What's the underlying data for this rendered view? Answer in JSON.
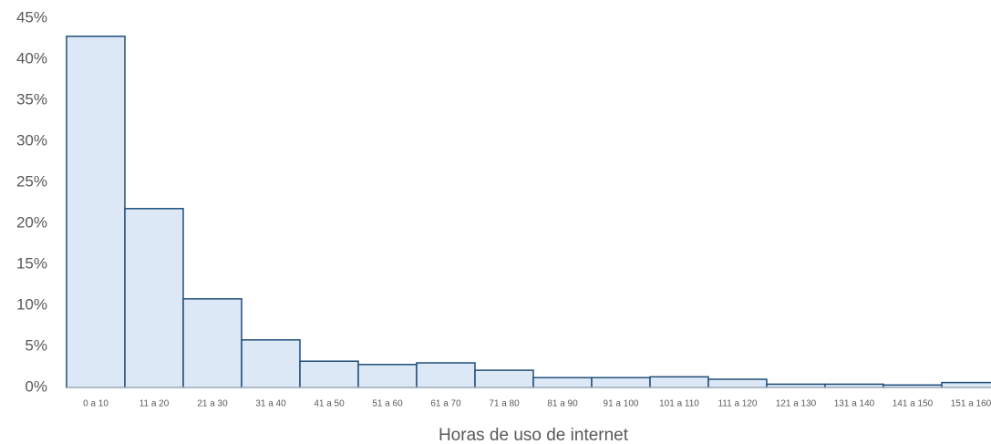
{
  "chart_data": {
    "type": "bar",
    "x_label": "Horas de uso de internet",
    "categories": [
      "0 a 10",
      "11 a 20",
      "21 a 30",
      "31 a 40",
      "41 a 50",
      "51 a 60",
      "61 a 70",
      "71 a 80",
      "81 a 90",
      "91 a 100",
      "101 a 110",
      "111 a 120",
      "121 a 130",
      "131 a 140",
      "141 a 150",
      "151 a 160"
    ],
    "values": [
      42.8,
      21.8,
      10.8,
      5.8,
      3.2,
      2.8,
      3.0,
      2.1,
      1.2,
      1.2,
      1.3,
      1.0,
      0.4,
      0.4,
      0.3,
      0.6
    ],
    "color": "#dde8f6",
    "edge_color": "#1f4e79",
    "ylim": [
      0,
      45
    ],
    "yticks": [
      {
        "value": 0,
        "label": "0%"
      },
      {
        "value": 5,
        "label": "5%"
      },
      {
        "value": 10,
        "label": "10%"
      },
      {
        "value": 15,
        "label": "15%"
      },
      {
        "value": 20,
        "label": "20%"
      },
      {
        "value": 25,
        "label": "25%"
      },
      {
        "value": 30,
        "label": "30%"
      },
      {
        "value": 35,
        "label": "35%"
      },
      {
        "value": 40,
        "label": "40%"
      },
      {
        "value": 45,
        "label": "45%"
      }
    ],
    "grid": false
  }
}
